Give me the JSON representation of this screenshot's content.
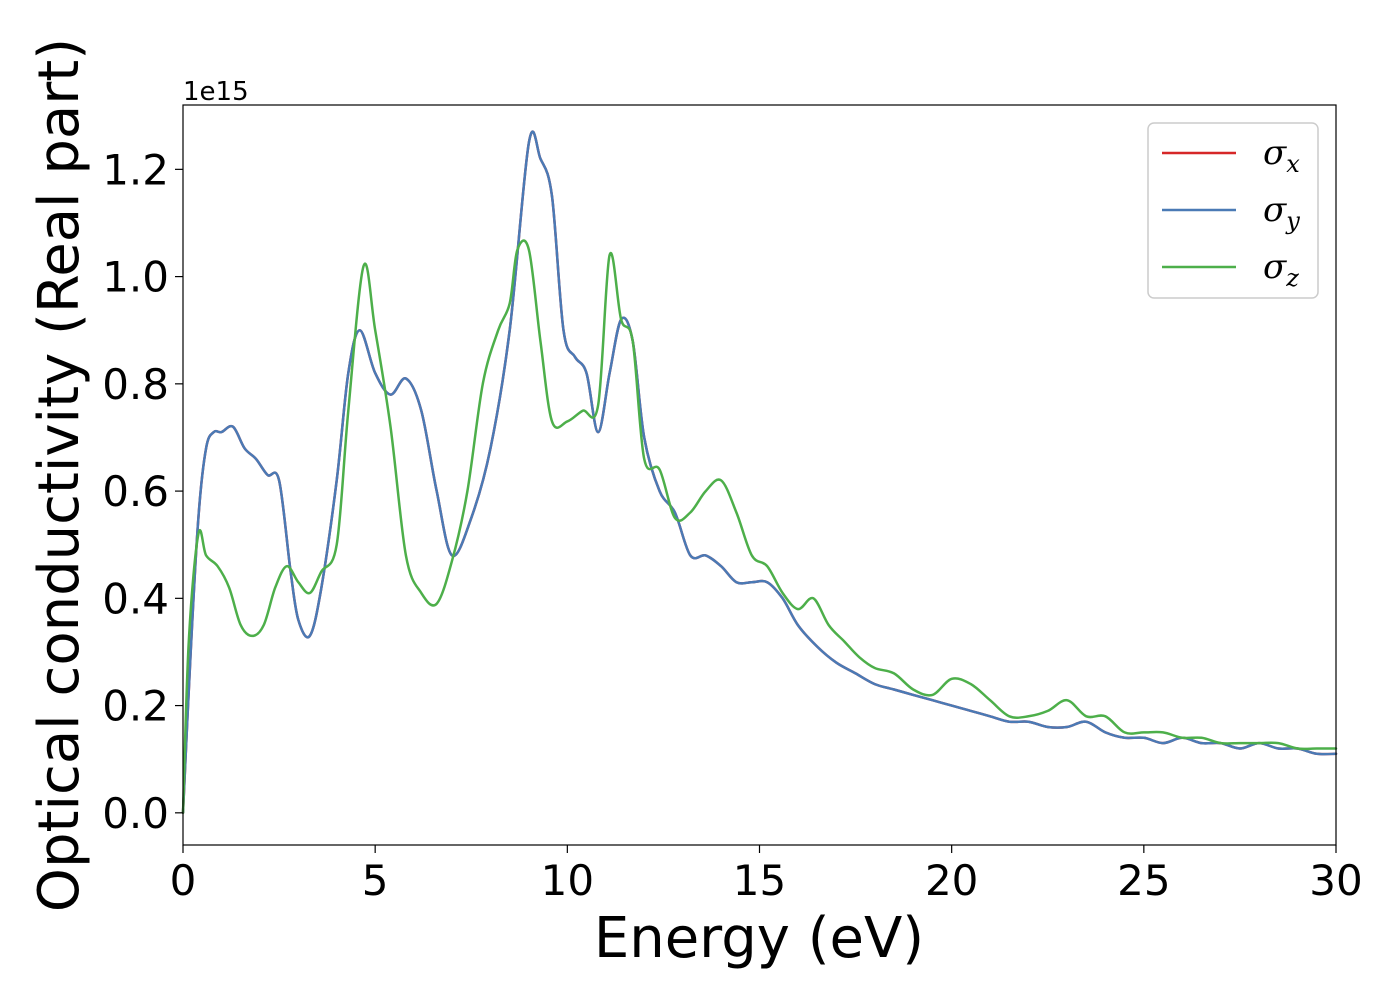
{
  "chart_data": {
    "type": "line",
    "title": "",
    "xlabel": "Energy (eV)",
    "ylabel": "Optical conductivity (Real part)",
    "y_offset_label": "1e15",
    "xlim": [
      0,
      30
    ],
    "ylim": [
      -0.06,
      1.32
    ],
    "xticks": [
      0,
      5,
      10,
      15,
      20,
      25,
      30
    ],
    "xtick_labels": [
      "0",
      "5",
      "10",
      "15",
      "20",
      "25",
      "30"
    ],
    "yticks": [
      0.0,
      0.2,
      0.4,
      0.6,
      0.8,
      1.0,
      1.2
    ],
    "ytick_labels": [
      "0.0",
      "0.2",
      "0.4",
      "0.6",
      "0.8",
      "1.0",
      "1.2"
    ],
    "grid": false,
    "legend_position": "top-right",
    "series": [
      {
        "name": "σx",
        "symbol": "σ",
        "subscript": "x",
        "color": "#d62728",
        "x": [
          0,
          0.2,
          0.4,
          0.6,
          0.8,
          1.0,
          1.3,
          1.6,
          1.9,
          2.2,
          2.5,
          2.8,
          3.0,
          3.3,
          3.6,
          4.0,
          4.3,
          4.6,
          5.0,
          5.4,
          5.8,
          6.2,
          6.6,
          7.0,
          7.5,
          8.0,
          8.5,
          9.0,
          9.3,
          9.6,
          9.9,
          10.2,
          10.5,
          10.8,
          11.1,
          11.4,
          11.7,
          12.0,
          12.4,
          12.8,
          13.2,
          13.6,
          14.0,
          14.4,
          14.8,
          15.2,
          15.6,
          16.0,
          16.5,
          17.0,
          17.5,
          18.0,
          18.5,
          19.0,
          19.5,
          20.0,
          20.5,
          21.0,
          21.5,
          22.0,
          22.5,
          23.0,
          23.5,
          24.0,
          24.5,
          25.0,
          25.5,
          26.0,
          26.5,
          27.0,
          27.5,
          28.0,
          28.5,
          29.0,
          29.5,
          30.0
        ],
        "y": [
          0.0,
          0.3,
          0.55,
          0.68,
          0.71,
          0.71,
          0.72,
          0.68,
          0.66,
          0.63,
          0.62,
          0.45,
          0.36,
          0.33,
          0.42,
          0.62,
          0.82,
          0.9,
          0.82,
          0.78,
          0.81,
          0.75,
          0.6,
          0.48,
          0.55,
          0.68,
          0.9,
          1.25,
          1.22,
          1.15,
          0.9,
          0.85,
          0.82,
          0.71,
          0.82,
          0.92,
          0.88,
          0.7,
          0.6,
          0.56,
          0.48,
          0.48,
          0.46,
          0.43,
          0.43,
          0.43,
          0.4,
          0.35,
          0.31,
          0.28,
          0.26,
          0.24,
          0.23,
          0.22,
          0.21,
          0.2,
          0.19,
          0.18,
          0.17,
          0.17,
          0.16,
          0.16,
          0.17,
          0.15,
          0.14,
          0.14,
          0.13,
          0.14,
          0.13,
          0.13,
          0.12,
          0.13,
          0.12,
          0.12,
          0.11,
          0.11
        ]
      },
      {
        "name": "σy",
        "symbol": "σ",
        "subscript": "y",
        "color": "#4a7ab5",
        "x": [
          0,
          0.2,
          0.4,
          0.6,
          0.8,
          1.0,
          1.3,
          1.6,
          1.9,
          2.2,
          2.5,
          2.8,
          3.0,
          3.3,
          3.6,
          4.0,
          4.3,
          4.6,
          5.0,
          5.4,
          5.8,
          6.2,
          6.6,
          7.0,
          7.5,
          8.0,
          8.5,
          9.0,
          9.3,
          9.6,
          9.9,
          10.2,
          10.5,
          10.8,
          11.1,
          11.4,
          11.7,
          12.0,
          12.4,
          12.8,
          13.2,
          13.6,
          14.0,
          14.4,
          14.8,
          15.2,
          15.6,
          16.0,
          16.5,
          17.0,
          17.5,
          18.0,
          18.5,
          19.0,
          19.5,
          20.0,
          20.5,
          21.0,
          21.5,
          22.0,
          22.5,
          23.0,
          23.5,
          24.0,
          24.5,
          25.0,
          25.5,
          26.0,
          26.5,
          27.0,
          27.5,
          28.0,
          28.5,
          29.0,
          29.5,
          30.0
        ],
        "y": [
          0.0,
          0.3,
          0.55,
          0.68,
          0.71,
          0.71,
          0.72,
          0.68,
          0.66,
          0.63,
          0.62,
          0.45,
          0.36,
          0.33,
          0.42,
          0.62,
          0.82,
          0.9,
          0.82,
          0.78,
          0.81,
          0.75,
          0.6,
          0.48,
          0.55,
          0.68,
          0.9,
          1.25,
          1.22,
          1.15,
          0.9,
          0.85,
          0.82,
          0.71,
          0.82,
          0.92,
          0.88,
          0.7,
          0.6,
          0.56,
          0.48,
          0.48,
          0.46,
          0.43,
          0.43,
          0.43,
          0.4,
          0.35,
          0.31,
          0.28,
          0.26,
          0.24,
          0.23,
          0.22,
          0.21,
          0.2,
          0.19,
          0.18,
          0.17,
          0.17,
          0.16,
          0.16,
          0.17,
          0.15,
          0.14,
          0.14,
          0.13,
          0.14,
          0.13,
          0.13,
          0.12,
          0.13,
          0.12,
          0.12,
          0.11,
          0.11
        ]
      },
      {
        "name": "σz",
        "symbol": "σ",
        "subscript": "z",
        "color": "#4daf4a",
        "x": [
          0,
          0.15,
          0.4,
          0.6,
          0.9,
          1.2,
          1.5,
          1.8,
          2.1,
          2.4,
          2.7,
          3.0,
          3.3,
          3.6,
          4.0,
          4.3,
          4.7,
          5.0,
          5.4,
          5.8,
          6.2,
          6.6,
          7.0,
          7.4,
          7.8,
          8.2,
          8.5,
          8.7,
          9.0,
          9.3,
          9.6,
          10.0,
          10.4,
          10.8,
          11.1,
          11.4,
          11.7,
          12.0,
          12.4,
          12.8,
          13.2,
          13.6,
          14.0,
          14.4,
          14.8,
          15.2,
          15.6,
          16.0,
          16.4,
          16.8,
          17.2,
          17.6,
          18.0,
          18.5,
          19.0,
          19.5,
          20.0,
          20.5,
          21.0,
          21.5,
          22.0,
          22.5,
          23.0,
          23.5,
          24.0,
          24.5,
          25.0,
          25.5,
          26.0,
          26.5,
          27.0,
          27.5,
          28.0,
          28.5,
          29.0,
          29.5,
          30.0
        ],
        "y": [
          0.0,
          0.32,
          0.52,
          0.48,
          0.46,
          0.42,
          0.35,
          0.33,
          0.35,
          0.42,
          0.46,
          0.43,
          0.41,
          0.45,
          0.5,
          0.75,
          1.02,
          0.9,
          0.72,
          0.48,
          0.41,
          0.39,
          0.47,
          0.6,
          0.8,
          0.9,
          0.95,
          1.05,
          1.05,
          0.88,
          0.73,
          0.73,
          0.75,
          0.76,
          1.04,
          0.92,
          0.88,
          0.66,
          0.64,
          0.55,
          0.56,
          0.6,
          0.62,
          0.56,
          0.48,
          0.46,
          0.41,
          0.38,
          0.4,
          0.35,
          0.32,
          0.29,
          0.27,
          0.26,
          0.23,
          0.22,
          0.25,
          0.24,
          0.21,
          0.18,
          0.18,
          0.19,
          0.21,
          0.18,
          0.18,
          0.15,
          0.15,
          0.15,
          0.14,
          0.14,
          0.13,
          0.13,
          0.13,
          0.13,
          0.12,
          0.12,
          0.12
        ]
      }
    ]
  }
}
